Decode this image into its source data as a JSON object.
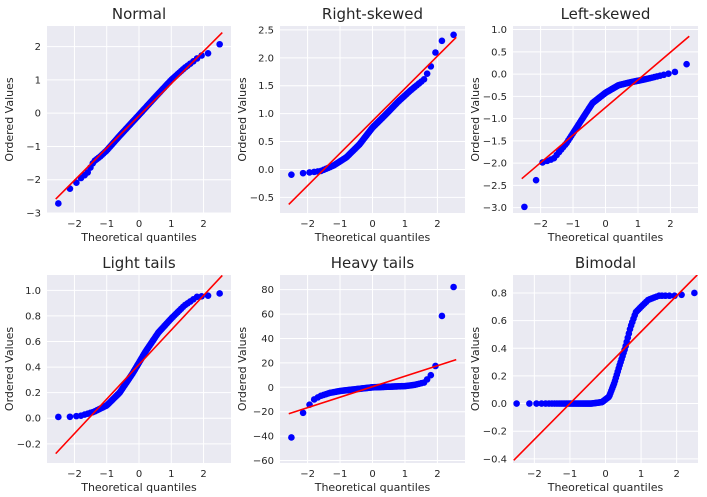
{
  "colors": {
    "panel_bg": "#eaeaf2",
    "grid": "#ffffff",
    "marker": "#0000ff",
    "fit_line": "#ff0000"
  },
  "chart_data": [
    {
      "type": "scatter",
      "title": "Normal",
      "xlabel": "Theoretical quantiles",
      "ylabel": "Ordered Values",
      "xlim": [
        -2.85,
        2.85
      ],
      "ylim": [
        -3.0,
        2.62
      ],
      "xticks": [
        -2,
        -1,
        0,
        1,
        2
      ],
      "yticks": [
        -3,
        -2,
        -1,
        0,
        1,
        2
      ],
      "xticklabels": [
        "−2",
        "−1",
        "0",
        "1",
        "2"
      ],
      "yticklabels": [
        "−3",
        "−2",
        "−1",
        "0",
        "1",
        "2"
      ],
      "grid": true,
      "fit_line": {
        "slope": 0.97,
        "intercept": -0.08
      },
      "anchors": [
        [
          -2.58,
          -2.82
        ],
        [
          -2.2,
          -2.32
        ],
        [
          -2.0,
          -2.15
        ],
        [
          -1.8,
          -1.95
        ],
        [
          -1.6,
          -1.8
        ],
        [
          -1.4,
          -1.45
        ],
        [
          -1.2,
          -1.3
        ],
        [
          -1.0,
          -1.12
        ],
        [
          -0.6,
          -0.68
        ],
        [
          0,
          -0.05
        ],
        [
          0.5,
          0.48
        ],
        [
          1.0,
          1.0
        ],
        [
          1.4,
          1.35
        ],
        [
          1.9,
          1.72
        ],
        [
          2.2,
          1.82
        ],
        [
          2.58,
          2.14
        ]
      ]
    },
    {
      "type": "scatter",
      "title": "Right-skewed",
      "xlabel": "Theoretical quantiles",
      "ylabel": "Ordered Values",
      "xlim": [
        -2.85,
        2.85
      ],
      "ylim": [
        -0.78,
        2.57
      ],
      "xticks": [
        -2,
        -1,
        0,
        1,
        2
      ],
      "yticks": [
        -0.5,
        0,
        0.5,
        1.0,
        1.5,
        2.0,
        2.5
      ],
      "xticklabels": [
        "−2",
        "−1",
        "0",
        "1",
        "2"
      ],
      "yticklabels": [
        "−0.5",
        "0.0",
        "0.5",
        "1.0",
        "1.5",
        "2.0",
        "2.5"
      ],
      "grid": true,
      "fit_line": {
        "slope": 0.58,
        "intercept": 0.87
      },
      "anchors": [
        [
          -2.58,
          -0.1
        ],
        [
          -2.2,
          -0.07
        ],
        [
          -1.6,
          -0.03
        ],
        [
          -1.2,
          0.07
        ],
        [
          -0.8,
          0.22
        ],
        [
          -0.4,
          0.45
        ],
        [
          0,
          0.75
        ],
        [
          0.4,
          0.98
        ],
        [
          0.8,
          1.22
        ],
        [
          1.2,
          1.43
        ],
        [
          1.6,
          1.62
        ],
        [
          1.8,
          1.85
        ],
        [
          2.0,
          2.2
        ],
        [
          2.2,
          2.35
        ],
        [
          2.58,
          2.43
        ]
      ]
    },
    {
      "type": "scatter",
      "title": "Left-skewed",
      "xlabel": "Theoretical quantiles",
      "ylabel": "Ordered Values",
      "xlim": [
        -2.85,
        2.85
      ],
      "ylim": [
        -3.12,
        1.08
      ],
      "xticks": [
        -2,
        -1,
        0,
        1,
        2
      ],
      "yticks": [
        -3.0,
        -2.5,
        -2.0,
        -1.5,
        -1.0,
        -0.5,
        0.0,
        0.5,
        1.0
      ],
      "xticklabels": [
        "−2",
        "−1",
        "0",
        "1",
        "2"
      ],
      "yticklabels": [
        "−3.0",
        "−2.5",
        "−2.0",
        "−1.5",
        "−1.0",
        "−0.5",
        "0.0",
        "0.5",
        "1.0"
      ],
      "grid": true,
      "fit_line": {
        "slope": 0.62,
        "intercept": -0.75
      },
      "anchors": [
        [
          -2.58,
          -3.0
        ],
        [
          -2.35,
          -2.95
        ],
        [
          -2.2,
          -2.55
        ],
        [
          -2.0,
          -2.0
        ],
        [
          -1.6,
          -1.9
        ],
        [
          -1.2,
          -1.55
        ],
        [
          -0.8,
          -1.1
        ],
        [
          -0.4,
          -0.65
        ],
        [
          0,
          -0.42
        ],
        [
          0.4,
          -0.25
        ],
        [
          0.8,
          -0.18
        ],
        [
          1.2,
          -0.12
        ],
        [
          1.6,
          -0.05
        ],
        [
          2.0,
          0.02
        ],
        [
          2.3,
          0.08
        ],
        [
          2.58,
          0.28
        ]
      ]
    },
    {
      "type": "scatter",
      "title": "Light tails",
      "xlabel": "Theoretical quantiles",
      "ylabel": "Ordered Values",
      "xlim": [
        -2.85,
        2.85
      ],
      "ylim": [
        -0.35,
        1.12
      ],
      "xticks": [
        -2,
        -1,
        0,
        1,
        2
      ],
      "yticks": [
        -0.2,
        0,
        0.2,
        0.4,
        0.6,
        0.8,
        1.0
      ],
      "xticklabels": [
        "−2",
        "−1",
        "0",
        "1",
        "2"
      ],
      "yticklabels": [
        "−0.2",
        "0.0",
        "0.2",
        "0.4",
        "0.6",
        "0.8",
        "1.0"
      ],
      "grid": true,
      "fit_line": {
        "slope": 0.27,
        "intercept": 0.42
      },
      "anchors": [
        [
          -2.58,
          0.01
        ],
        [
          -2.2,
          0.01
        ],
        [
          -1.8,
          0.02
        ],
        [
          -1.4,
          0.05
        ],
        [
          -1.0,
          0.1
        ],
        [
          -0.6,
          0.2
        ],
        [
          -0.2,
          0.35
        ],
        [
          0.2,
          0.52
        ],
        [
          0.6,
          0.67
        ],
        [
          1.0,
          0.78
        ],
        [
          1.4,
          0.88
        ],
        [
          1.8,
          0.95
        ],
        [
          2.2,
          0.96
        ],
        [
          2.58,
          0.98
        ]
      ]
    },
    {
      "type": "scatter",
      "title": "Heavy tails",
      "xlabel": "Theoretical quantiles",
      "ylabel": "Ordered Values",
      "xlim": [
        -2.85,
        2.85
      ],
      "ylim": [
        -62,
        92
      ],
      "xticks": [
        -2,
        -1,
        0,
        1,
        2
      ],
      "yticks": [
        -60,
        -40,
        -20,
        0,
        20,
        40,
        60,
        80
      ],
      "xticklabels": [
        "−2",
        "−1",
        "0",
        "1",
        "2"
      ],
      "yticklabels": [
        "−60",
        "−40",
        "−20",
        "0",
        "20",
        "40",
        "60",
        "80"
      ],
      "grid": true,
      "fit_line": {
        "slope": 8.6,
        "intercept": 0.5
      },
      "anchors": [
        [
          -2.58,
          -56
        ],
        [
          -2.4,
          -23
        ],
        [
          -2.2,
          -23
        ],
        [
          -2.0,
          -16
        ],
        [
          -1.8,
          -10
        ],
        [
          -1.6,
          -7
        ],
        [
          -1.3,
          -4.5
        ],
        [
          -1.0,
          -3
        ],
        [
          -0.5,
          -1.5
        ],
        [
          0,
          0
        ],
        [
          0.5,
          0.5
        ],
        [
          1.0,
          1
        ],
        [
          1.3,
          2
        ],
        [
          1.6,
          4
        ],
        [
          1.8,
          10
        ],
        [
          1.95,
          18
        ],
        [
          2.1,
          55
        ],
        [
          2.35,
          77
        ],
        [
          2.58,
          85
        ]
      ]
    },
    {
      "type": "scatter",
      "title": "Bimodal",
      "xlabel": "Theoretical quantiles",
      "ylabel": "Ordered Values",
      "xlim": [
        -2.6,
        2.6
      ],
      "ylim": [
        -0.43,
        0.93
      ],
      "xticks": [
        -2,
        -1,
        0,
        1,
        2
      ],
      "yticks": [
        -0.4,
        -0.2,
        0,
        0.2,
        0.4,
        0.6,
        0.8
      ],
      "xticklabels": [
        "−2",
        "−1",
        "0",
        "1",
        "2"
      ],
      "yticklabels": [
        "−0.4",
        "−0.2",
        "0.0",
        "0.2",
        "0.4",
        "0.6",
        "0.8"
      ],
      "grid": true,
      "fit_line": {
        "slope": 0.26,
        "intercept": 0.26
      },
      "anchors": [
        [
          -2.4,
          0
        ],
        [
          -1.8,
          0
        ],
        [
          -1.0,
          0
        ],
        [
          -0.4,
          0
        ],
        [
          -0.1,
          0.01
        ],
        [
          0.1,
          0.05
        ],
        [
          0.25,
          0.15
        ],
        [
          0.4,
          0.28
        ],
        [
          0.55,
          0.4
        ],
        [
          0.7,
          0.55
        ],
        [
          0.85,
          0.66
        ],
        [
          1.0,
          0.7
        ],
        [
          1.2,
          0.75
        ],
        [
          1.5,
          0.78
        ],
        [
          2.0,
          0.78
        ],
        [
          2.4,
          0.8
        ]
      ]
    }
  ]
}
